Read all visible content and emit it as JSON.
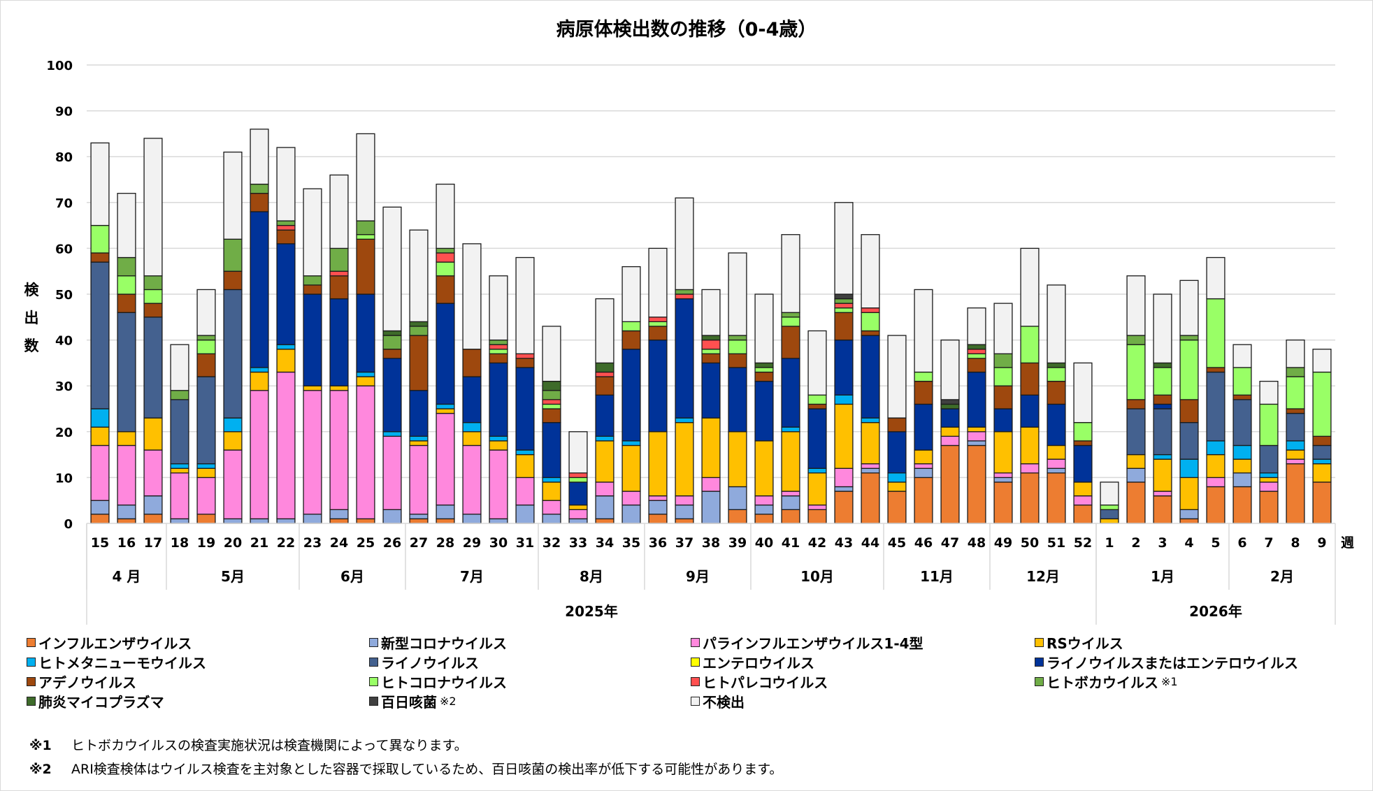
{
  "title": "病原体検出数の推移（0-4歳）",
  "y_axis_label": [
    "検",
    "出",
    "数"
  ],
  "notes": [
    {
      "mark": "※1",
      "text": "ヒトボカウイルスの検査実施状況は検査機関によって異なります。"
    },
    {
      "mark": "※2",
      "text": "ARI検査検体はウイルス検査を主対象とした容器で採取しているため、百日咳菌の検出率が低下する可能性があります。"
    }
  ],
  "chart_data": {
    "type": "bar",
    "stacked": true,
    "title": "病原体検出数の推移（0-4歳）",
    "xlabel": "週",
    "ylabel": "検出数",
    "ylim": [
      0,
      100
    ],
    "yticks": [
      0,
      10,
      20,
      30,
      40,
      50,
      60,
      70,
      80,
      90,
      100
    ],
    "grid": true,
    "legend_position": "bottom",
    "categories": [
      "15",
      "16",
      "17",
      "18",
      "19",
      "20",
      "21",
      "22",
      "23",
      "24",
      "25",
      "26",
      "27",
      "28",
      "29",
      "30",
      "31",
      "32",
      "33",
      "34",
      "35",
      "36",
      "37",
      "38",
      "39",
      "40",
      "41",
      "42",
      "43",
      "44",
      "45",
      "46",
      "47",
      "48",
      "49",
      "50",
      "51",
      "52",
      "1",
      "2",
      "3",
      "4",
      "5",
      "6",
      "7",
      "8",
      "9"
    ],
    "months": [
      {
        "label": "4 月",
        "span": 3
      },
      {
        "label": "5月",
        "span": 5
      },
      {
        "label": "6月",
        "span": 4
      },
      {
        "label": "7月",
        "span": 5
      },
      {
        "label": "8月",
        "span": 4
      },
      {
        "label": "9月",
        "span": 4
      },
      {
        "label": "10月",
        "span": 5
      },
      {
        "label": "11月",
        "span": 4
      },
      {
        "label": "12月",
        "span": 4
      },
      {
        "label": "1月",
        "span": 5
      },
      {
        "label": "2月",
        "span": 4
      }
    ],
    "years": [
      {
        "label": "2025年",
        "span": 38
      },
      {
        "label": "2026年",
        "span": 9
      }
    ],
    "series": [
      {
        "name": "インフルエンザウイルス",
        "color": "#ED7D31",
        "values": [
          2,
          1,
          2,
          0,
          2,
          0,
          0,
          0,
          0,
          1,
          1,
          0,
          1,
          1,
          0,
          0,
          0,
          0,
          0,
          1,
          0,
          2,
          1,
          0,
          3,
          2,
          3,
          3,
          7,
          11,
          7,
          10,
          17,
          17,
          9,
          11,
          11,
          4,
          0,
          9,
          6,
          1,
          8,
          8,
          7,
          13,
          9
        ]
      },
      {
        "name": "新型コロナウイルス",
        "color": "#8FAADC",
        "values": [
          3,
          3,
          4,
          1,
          0,
          1,
          1,
          1,
          2,
          2,
          0,
          3,
          1,
          3,
          2,
          1,
          4,
          2,
          1,
          5,
          4,
          3,
          3,
          7,
          5,
          2,
          3,
          0,
          1,
          1,
          0,
          2,
          0,
          1,
          1,
          0,
          1,
          0,
          0,
          3,
          0,
          2,
          0,
          3,
          0,
          0,
          0
        ]
      },
      {
        "name": "パラインフルエンザウイルス1-4型",
        "color": "#FF88DD",
        "values": [
          12,
          13,
          10,
          10,
          8,
          15,
          28,
          32,
          27,
          26,
          29,
          16,
          15,
          20,
          15,
          15,
          6,
          3,
          2,
          3,
          3,
          1,
          2,
          3,
          0,
          2,
          1,
          1,
          4,
          1,
          0,
          1,
          2,
          2,
          1,
          2,
          2,
          2,
          0,
          0,
          1,
          0,
          2,
          0,
          2,
          1,
          0
        ]
      },
      {
        "name": "RSウイルス",
        "color": "#FFC000",
        "values": [
          4,
          3,
          7,
          1,
          2,
          4,
          4,
          5,
          1,
          1,
          2,
          0,
          1,
          1,
          3,
          2,
          5,
          4,
          1,
          9,
          10,
          14,
          16,
          13,
          12,
          12,
          13,
          7,
          14,
          9,
          2,
          3,
          2,
          1,
          9,
          8,
          3,
          3,
          1,
          3,
          7,
          7,
          5,
          3,
          1,
          2,
          4
        ]
      },
      {
        "name": "ヒトメタニューモウイルス",
        "color": "#00B0F0",
        "values": [
          4,
          0,
          0,
          1,
          1,
          3,
          1,
          1,
          0,
          0,
          1,
          1,
          1,
          1,
          2,
          1,
          1,
          1,
          0,
          1,
          1,
          0,
          1,
          0,
          0,
          0,
          1,
          1,
          2,
          1,
          2,
          0,
          0,
          0,
          0,
          0,
          0,
          0,
          0,
          0,
          1,
          4,
          3,
          3,
          1,
          2,
          1
        ]
      },
      {
        "name": "ライノウイルス",
        "color": "#44618F",
        "values": [
          32,
          26,
          22,
          14,
          19,
          28,
          0,
          0,
          0,
          0,
          0,
          0,
          0,
          0,
          0,
          0,
          0,
          0,
          0,
          0,
          0,
          0,
          0,
          0,
          0,
          0,
          0,
          0,
          0,
          0,
          0,
          0,
          0,
          0,
          0,
          0,
          0,
          0,
          2,
          10,
          10,
          8,
          15,
          10,
          6,
          6,
          3
        ]
      },
      {
        "name": "エンテロウイルス",
        "color": "#FFFF00",
        "values": [
          0,
          0,
          0,
          0,
          0,
          0,
          0,
          0,
          0,
          0,
          0,
          0,
          0,
          0,
          0,
          0,
          0,
          0,
          0,
          0,
          0,
          0,
          0,
          0,
          0,
          0,
          0,
          0,
          0,
          0,
          0,
          0,
          0,
          0,
          0,
          0,
          0,
          0,
          0,
          0,
          0,
          0,
          0,
          0,
          0,
          0,
          0
        ]
      },
      {
        "name": "ライノウイルスまたはエンテロウイルス",
        "color": "#003399",
        "values": [
          0,
          0,
          0,
          0,
          0,
          0,
          34,
          22,
          20,
          19,
          17,
          16,
          10,
          22,
          10,
          16,
          18,
          12,
          5,
          9,
          20,
          20,
          26,
          12,
          14,
          13,
          15,
          13,
          12,
          18,
          9,
          10,
          4,
          12,
          5,
          7,
          9,
          8,
          0,
          0,
          1,
          0,
          0,
          0,
          0,
          0,
          0
        ]
      },
      {
        "name": "アデノウイルス",
        "color": "#9E480E",
        "values": [
          2,
          4,
          3,
          0,
          5,
          4,
          4,
          3,
          2,
          5,
          12,
          2,
          12,
          6,
          6,
          2,
          2,
          3,
          0,
          4,
          4,
          3,
          0,
          2,
          3,
          2,
          7,
          1,
          6,
          1,
          3,
          5,
          0,
          3,
          5,
          7,
          5,
          1,
          0,
          2,
          2,
          5,
          1,
          1,
          0,
          1,
          2
        ]
      },
      {
        "name": "ヒトコロナウイルス",
        "color": "#99FF66",
        "values": [
          6,
          4,
          3,
          0,
          3,
          0,
          0,
          0,
          0,
          0,
          1,
          0,
          0,
          3,
          0,
          1,
          0,
          1,
          1,
          0,
          2,
          1,
          0,
          1,
          3,
          1,
          2,
          2,
          1,
          4,
          0,
          2,
          0,
          1,
          4,
          8,
          3,
          4,
          1,
          12,
          6,
          13,
          15,
          6,
          9,
          7,
          14
        ]
      },
      {
        "name": "ヒトパレコウイルス",
        "color": "#FF5050",
        "values": [
          0,
          0,
          0,
          0,
          0,
          0,
          0,
          1,
          0,
          1,
          0,
          0,
          0,
          2,
          0,
          1,
          1,
          1,
          1,
          1,
          0,
          1,
          1,
          2,
          0,
          0,
          0,
          0,
          1,
          1,
          0,
          0,
          0,
          1,
          0,
          0,
          0,
          0,
          0,
          0,
          0,
          0,
          0,
          0,
          0,
          0,
          0
        ]
      },
      {
        "name": "ヒトボカウイルス",
        "color": "#70AD47",
        "values": [
          0,
          4,
          3,
          2,
          1,
          7,
          2,
          1,
          2,
          5,
          3,
          3,
          2,
          1,
          0,
          1,
          0,
          2,
          0,
          0,
          0,
          0,
          1,
          0,
          1,
          0,
          1,
          0,
          1,
          0,
          0,
          0,
          0,
          0,
          3,
          0,
          0,
          0,
          0,
          2,
          0,
          1,
          0,
          0,
          0,
          2,
          0
        ],
        "note": "※1"
      },
      {
        "name": "肺炎マイコプラズマ",
        "color": "#3E6B2A",
        "values": [
          0,
          0,
          0,
          0,
          0,
          0,
          0,
          0,
          0,
          0,
          0,
          1,
          1,
          0,
          0,
          0,
          0,
          2,
          0,
          2,
          0,
          0,
          0,
          1,
          0,
          1,
          0,
          0,
          0,
          0,
          0,
          0,
          1,
          1,
          0,
          0,
          1,
          0,
          0,
          0,
          1,
          0,
          0,
          0,
          0,
          0,
          0
        ]
      },
      {
        "name": "百日咳菌",
        "color": "#404040",
        "values": [
          0,
          0,
          0,
          0,
          0,
          0,
          0,
          0,
          0,
          0,
          0,
          0,
          0,
          0,
          0,
          0,
          0,
          0,
          0,
          0,
          0,
          0,
          0,
          0,
          0,
          0,
          0,
          0,
          1,
          0,
          0,
          0,
          1,
          0,
          0,
          0,
          0,
          0,
          0,
          0,
          0,
          0,
          0,
          0,
          0,
          0,
          0
        ],
        "note": "※2"
      },
      {
        "name": "不検出",
        "color": "#F2F2F2",
        "values": [
          18,
          14,
          30,
          10,
          10,
          19,
          12,
          16,
          19,
          16,
          19,
          27,
          20,
          14,
          23,
          14,
          21,
          12,
          9,
          14,
          12,
          15,
          20,
          10,
          18,
          15,
          17,
          14,
          20,
          16,
          18,
          18,
          13,
          8,
          11,
          17,
          17,
          13,
          5,
          13,
          15,
          12,
          9,
          5,
          5,
          6,
          5
        ]
      }
    ]
  },
  "legend": {
    "columns": [
      [
        "インフルエンザウイルス",
        "ヒトメタニューモウイルス",
        "アデノウイルス",
        "肺炎マイコプラズマ"
      ],
      [
        "新型コロナウイルス",
        "ライノウイルス",
        "ヒトコロナウイルス",
        "百日咳菌"
      ],
      [
        "パラインフルエンザウイルス1-4型",
        "エンテロウイルス",
        "ヒトパレコウイルス",
        "不検出"
      ],
      [
        "RSウイルス",
        "ライノウイルスまたはエンテロウイルス",
        "ヒトボカウイルス"
      ]
    ]
  }
}
